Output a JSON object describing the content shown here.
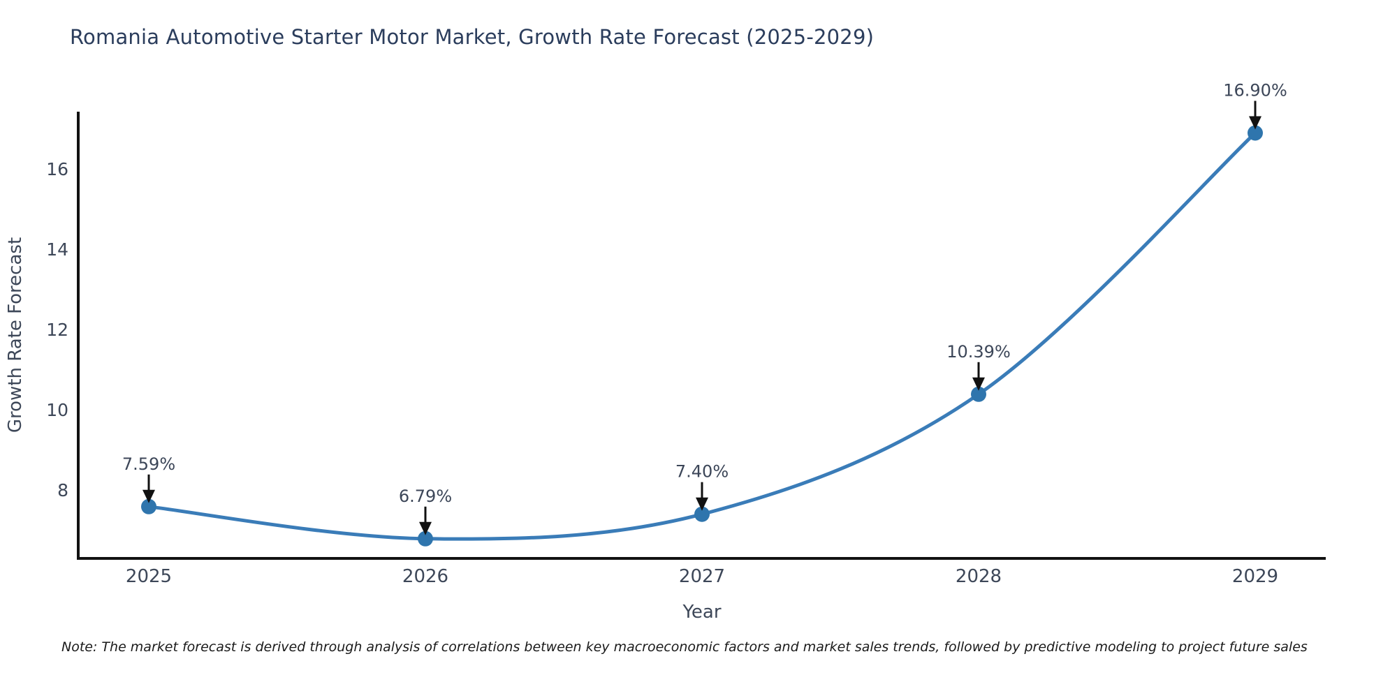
{
  "page": {
    "note": "Note: The market forecast is derived through analysis of correlations between key macroeconomic factors and market sales trends, followed by predictive modeling to project future sales"
  },
  "chart_data": {
    "type": "line",
    "title": "Romania Automotive Starter Motor Market, Growth Rate Forecast (2025-2029)",
    "xlabel": "Year",
    "ylabel": "Growth Rate Forecast",
    "x": [
      2025,
      2026,
      2027,
      2028,
      2029
    ],
    "values": [
      7.59,
      6.79,
      7.4,
      10.39,
      16.9
    ],
    "point_labels": [
      "7.59%",
      "6.79%",
      "7.40%",
      "10.39%",
      "16.90%"
    ],
    "yticks": [
      8,
      10,
      12,
      14,
      16
    ],
    "xlim": [
      2024.745,
      2029.255
    ],
    "ylim": [
      6.3,
      17.43
    ],
    "grid": false,
    "legend": "none",
    "line_shape": "spline",
    "annotation_style": "down-arrow-to-point",
    "colors": {
      "line": "#3a7cb8",
      "marker": "#2f75ad",
      "arrow": "#111111",
      "tick_text": "#3d4758",
      "annotation_text": "#3c4658",
      "title_text": "#2b3d5c",
      "axis_line": "#111111",
      "note_text": "#1a1a1a",
      "background": "#ffffff"
    }
  }
}
